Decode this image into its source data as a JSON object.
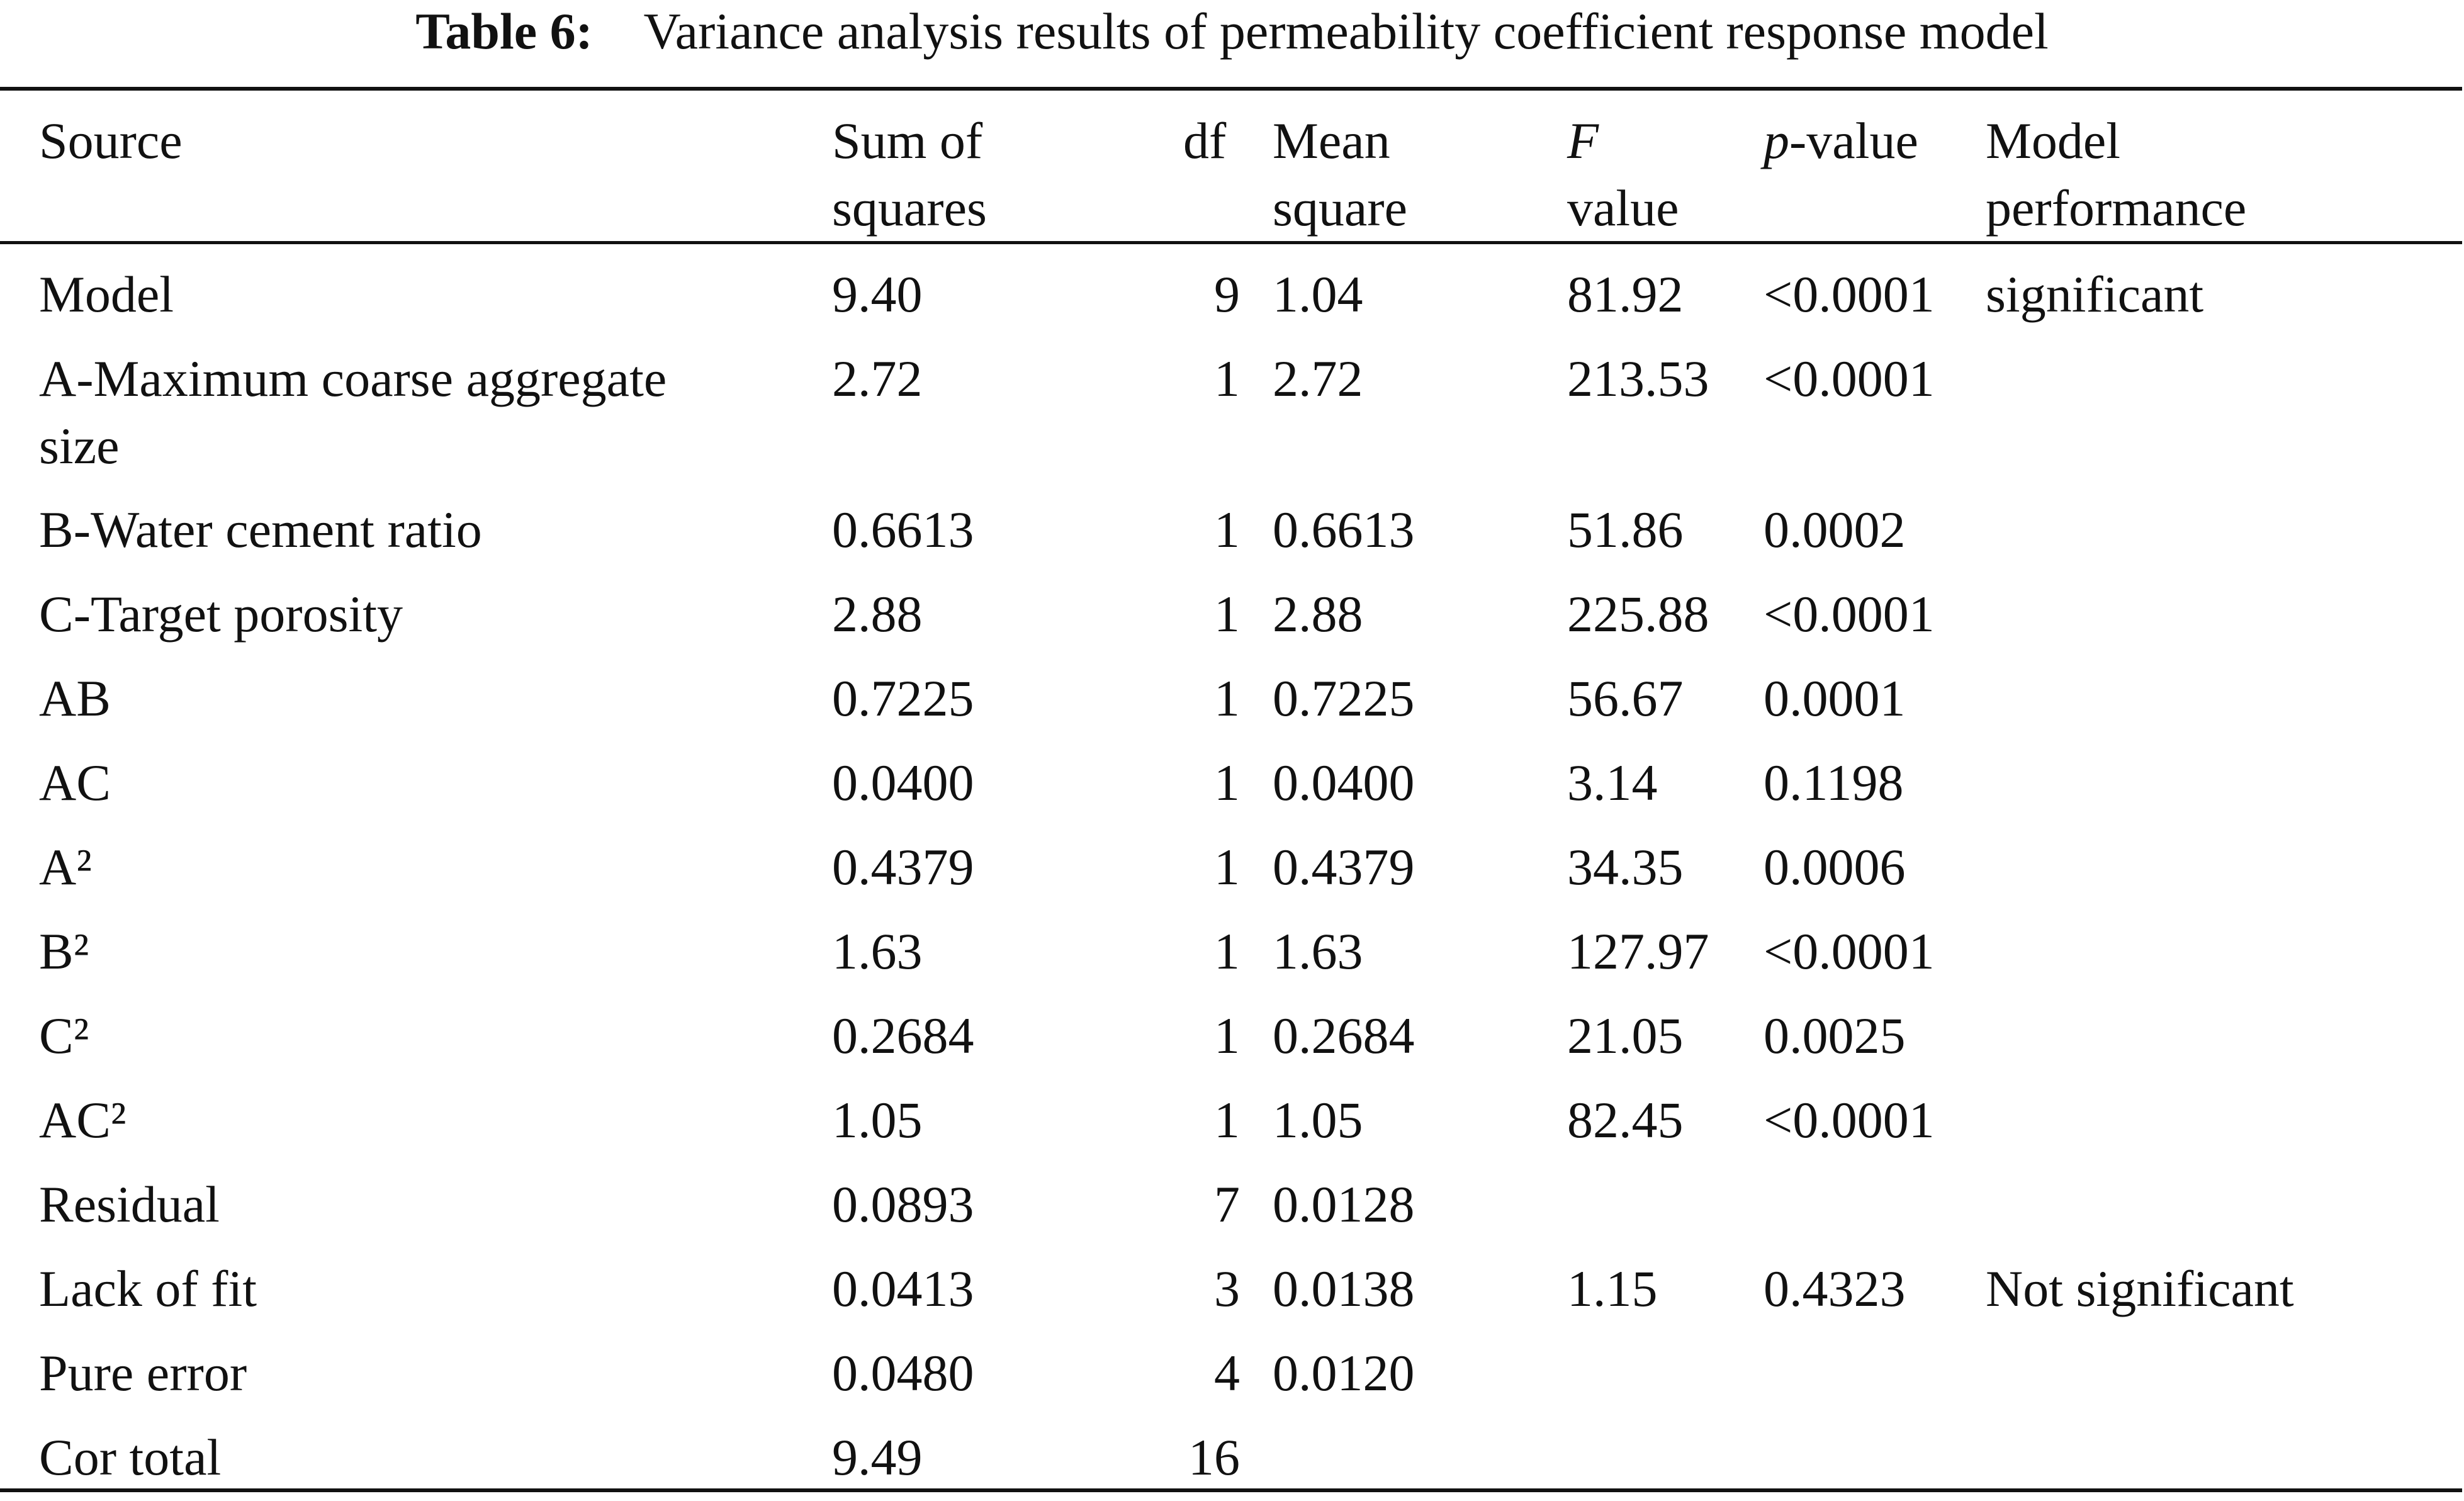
{
  "caption": {
    "label": "Table 6:",
    "title": "Variance analysis results of permeability coefficient response model"
  },
  "columns": {
    "source": "Source",
    "sum_of_squares": [
      "Sum of",
      "squares"
    ],
    "df": "df",
    "mean_square": [
      "Mean",
      "square"
    ],
    "f_value": {
      "italic": "F",
      "line2": "value"
    },
    "p_value": {
      "italic": "p",
      "rest": "-value"
    },
    "model_performance": [
      "Model",
      "performance"
    ]
  },
  "rows": [
    {
      "source": "Model",
      "ss": "9.40",
      "df": "9",
      "ms": "1.04",
      "f": "81.92",
      "p": "<0.0001",
      "perf": "significant"
    },
    {
      "source": "A-Maximum coarse aggregate",
      "source_line2": "size",
      "ss": "2.72",
      "df": "1",
      "ms": "2.72",
      "f": "213.53",
      "p": "<0.0001",
      "perf": ""
    },
    {
      "source": "B-Water cement ratio",
      "ss": "0.6613",
      "df": "1",
      "ms": "0.6613",
      "f": "51.86",
      "p": "0.0002",
      "perf": ""
    },
    {
      "source": "C-Target porosity",
      "ss": "2.88",
      "df": "1",
      "ms": "2.88",
      "f": "225.88",
      "p": "<0.0001",
      "perf": ""
    },
    {
      "source": "AB",
      "ss": "0.7225",
      "df": "1",
      "ms": "0.7225",
      "f": "56.67",
      "p": "0.0001",
      "perf": ""
    },
    {
      "source": "AC",
      "ss": "0.0400",
      "df": "1",
      "ms": "0.0400",
      "f": "3.14",
      "p": "0.1198",
      "perf": ""
    },
    {
      "source": "A²",
      "ss": "0.4379",
      "df": "1",
      "ms": "0.4379",
      "f": "34.35",
      "p": "0.0006",
      "perf": ""
    },
    {
      "source": "B²",
      "ss": "1.63",
      "df": "1",
      "ms": "1.63",
      "f": "127.97",
      "p": "<0.0001",
      "perf": ""
    },
    {
      "source": "C²",
      "ss": "0.2684",
      "df": "1",
      "ms": "0.2684",
      "f": "21.05",
      "p": "0.0025",
      "perf": ""
    },
    {
      "source": "AC²",
      "ss": "1.05",
      "df": "1",
      "ms": "1.05",
      "f": "82.45",
      "p": "<0.0001",
      "perf": ""
    },
    {
      "source": "Residual",
      "ss": "0.0893",
      "df": "7",
      "ms": "0.0128",
      "f": "",
      "p": "",
      "perf": ""
    },
    {
      "source": "Lack of fit",
      "ss": "0.0413",
      "df": "3",
      "ms": "0.0138",
      "f": "1.15",
      "p": "0.4323",
      "perf": "Not significant"
    },
    {
      "source": "Pure error",
      "ss": "0.0480",
      "df": "4",
      "ms": "0.0120",
      "f": "",
      "p": "",
      "perf": ""
    },
    {
      "source": "Cor total",
      "ss": "9.49",
      "df": "16",
      "ms": "",
      "f": "",
      "p": "",
      "perf": ""
    }
  ]
}
